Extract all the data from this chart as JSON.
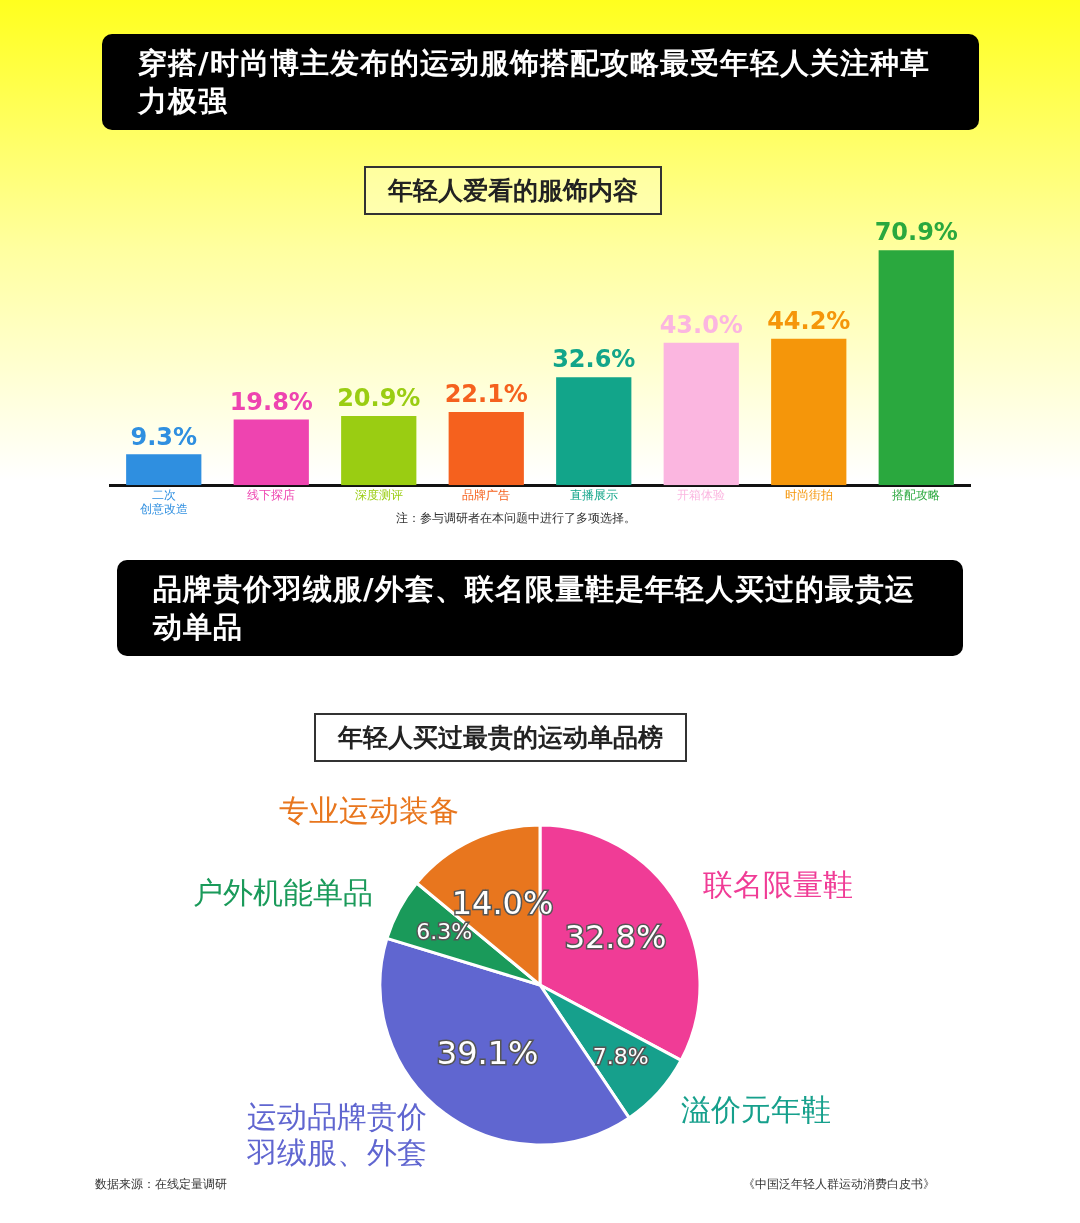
{
  "chart_data": [
    {
      "type": "bar",
      "title": "穿搭/时尚博主发布的运动服饰搭配攻略最受年轻人关注种草力极强",
      "subtitle": "年轻人爱看的服饰内容",
      "categories": [
        "二次创意改造",
        "线下探店",
        "深度测评",
        "品牌广告",
        "直播展示",
        "开箱体验",
        "时尚街拍",
        "搭配攻略"
      ],
      "values": [
        9.3,
        19.8,
        20.9,
        22.1,
        32.6,
        43.0,
        44.2,
        70.9
      ],
      "value_labels": [
        "9.3%",
        "19.8%",
        "20.9%",
        "22.1%",
        "32.6%",
        "43.0%",
        "44.2%",
        "70.9%"
      ],
      "colors": [
        "#2f8fe0",
        "#ee44b0",
        "#9acd12",
        "#f5611e",
        "#12a58a",
        "#fbb6e0",
        "#f5960a",
        "#2aa83e"
      ],
      "data_labels": true,
      "legend": false,
      "grid": false,
      "annotations": [
        "注：参与调研者在本问题中进行了多项选择。"
      ]
    },
    {
      "type": "pie",
      "title": "品牌贵价羽绒服/外套、联名限量鞋是年轻人买过的最贵运动单品",
      "subtitle": "年轻人买过最贵的运动单品榜",
      "categories": [
        "联名限量鞋",
        "溢价元年鞋",
        "运动品牌贵价羽绒服、外套",
        "户外机能单品",
        "专业运动装备"
      ],
      "values": [
        32.8,
        7.8,
        39.1,
        6.3,
        14.0
      ],
      "value_labels": [
        "32.8%",
        "7.8%",
        "39.1%",
        "6.3%",
        "14.0%"
      ],
      "colors": [
        "#f03c96",
        "#16a08c",
        "#6066d0",
        "#1a9a5a",
        "#e8761e"
      ],
      "data_labels": true,
      "legend": false,
      "annotations": [
        "数据来源：在线定量调研",
        "《中国泛年轻人群运动消费白皮书》"
      ]
    }
  ]
}
